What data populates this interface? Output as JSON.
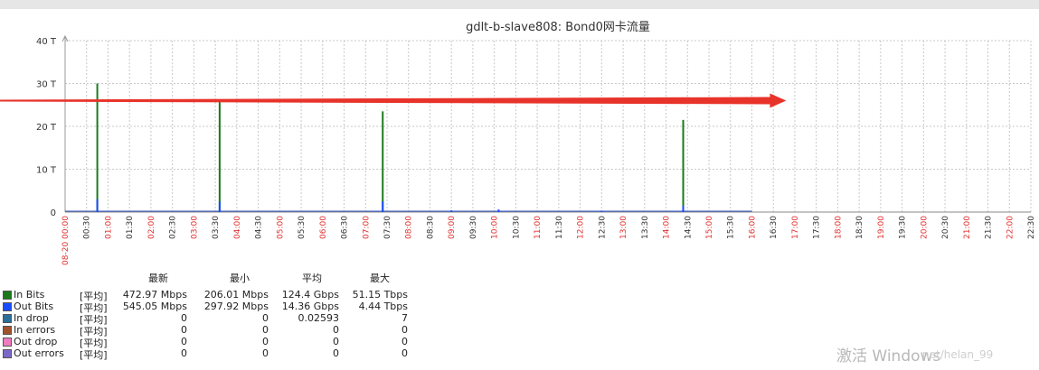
{
  "chart_data": {
    "type": "bar",
    "title": "gdlt-b-slave808: Bond0网卡流量",
    "y_ticks": [
      "0",
      "10 T",
      "20 T",
      "30 T",
      "40 T"
    ],
    "ylim": [
      0,
      40
    ],
    "y_unit": "T",
    "x_start_label": "08-20 00:00",
    "x_tick_labels": [
      "00:30",
      "01:00",
      "01:30",
      "02:00",
      "02:30",
      "03:00",
      "03:30",
      "04:00",
      "04:30",
      "05:00",
      "05:30",
      "06:00",
      "06:30",
      "07:00",
      "07:30",
      "08:00",
      "08:30",
      "09:00",
      "09:30",
      "10:00",
      "10:30",
      "11:00",
      "11:30",
      "12:00",
      "12:30",
      "13:00",
      "13:30",
      "14:00",
      "14:30",
      "15:00",
      "15:30",
      "16:00",
      "16:30",
      "17:00",
      "17:30",
      "18:00",
      "18:30",
      "19:00",
      "19:30",
      "20:00",
      "20:30",
      "21:00",
      "21:30",
      "22:00",
      "22:30"
    ],
    "x_ticks_red": [
      "01:00",
      "02:00",
      "03:00",
      "04:00",
      "05:00",
      "06:00",
      "07:00",
      "08:00",
      "09:00",
      "10:00",
      "11:00",
      "12:00",
      "13:00",
      "14:00",
      "15:00",
      "16:00",
      "17:00",
      "18:00",
      "19:00",
      "20:00",
      "21:00",
      "22:00"
    ],
    "grid": true,
    "data_end_hour": 16.0,
    "series": [
      {
        "name": "In Bits",
        "color": "#1a7a1a",
        "spikes": [
          {
            "hour": 0.75,
            "value": 30
          },
          {
            "hour": 3.6,
            "value": 26
          },
          {
            "hour": 7.4,
            "value": 23.5
          },
          {
            "hour": 14.4,
            "value": 21.5
          }
        ]
      },
      {
        "name": "Out Bits",
        "color": "#1a4cff",
        "spikes": [
          {
            "hour": 0.75,
            "value": 3
          },
          {
            "hour": 3.6,
            "value": 2.5
          },
          {
            "hour": 7.4,
            "value": 2.5
          },
          {
            "hour": 9.0,
            "value": 0.4
          },
          {
            "hour": 10.1,
            "value": 0.6
          },
          {
            "hour": 12.5,
            "value": 0.3
          },
          {
            "hour": 14.4,
            "value": 1.5
          }
        ]
      }
    ],
    "annotation": {
      "type": "arrow",
      "color": "#e8332a",
      "from": [
        0,
        26
      ],
      "to_hour": 16.8
    }
  },
  "legend": {
    "headers": [
      "最新",
      "最小",
      "平均",
      "最大"
    ],
    "rows": [
      {
        "name": "In Bits",
        "func": "[平均]",
        "color": "#1a7a1a",
        "last": "472.97 Mbps",
        "min": "206.01 Mbps",
        "avg": "124.4 Gbps",
        "max": "51.15 Tbps"
      },
      {
        "name": "Out Bits",
        "func": "[平均]",
        "color": "#1a4cff",
        "last": "545.05 Mbps",
        "min": "297.92 Mbps",
        "avg": "14.36 Gbps",
        "max": "4.44 Tbps"
      },
      {
        "name": "In drop",
        "func": "[平均]",
        "color": "#2a6e9a",
        "last": "0",
        "min": "0",
        "avg": "0.02593",
        "max": "7"
      },
      {
        "name": "In errors",
        "func": "[平均]",
        "color": "#a0522d",
        "last": "0",
        "min": "0",
        "avg": "0",
        "max": "0"
      },
      {
        "name": "Out drop",
        "func": "[平均]",
        "color": "#f07cc0",
        "last": "0",
        "min": "0",
        "avg": "0",
        "max": "0"
      },
      {
        "name": "Out errors",
        "func": "[平均]",
        "color": "#7b68c8",
        "last": "0",
        "min": "0",
        "avg": "0",
        "max": "0"
      }
    ]
  },
  "watermark": {
    "text": "激活 Windows",
    "trailing": "net/helan_99"
  }
}
